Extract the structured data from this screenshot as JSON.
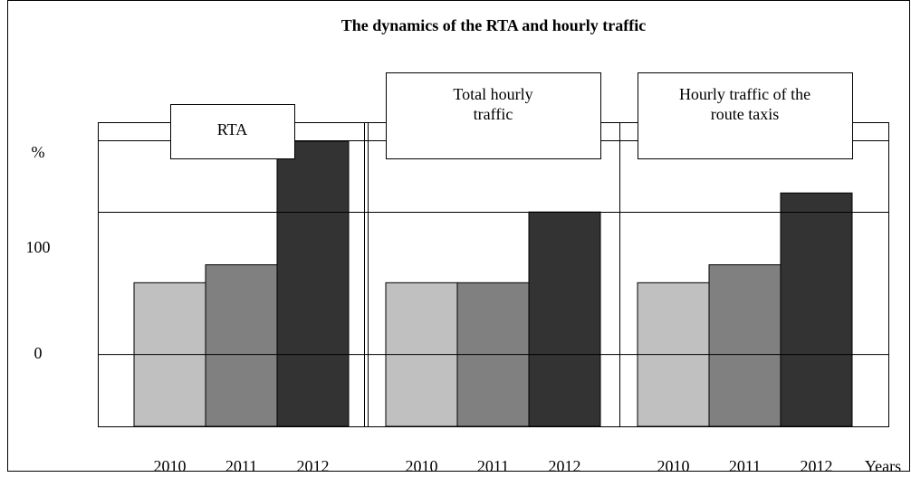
{
  "chart_data": {
    "type": "bar",
    "title": "The dynamics of the RTA and hourly traffic",
    "y_label": "%",
    "x_label": "Years",
    "ylim": [
      -68,
      220
    ],
    "yticks": [
      0,
      100
    ],
    "colors": [
      "#c0c0c0",
      "#808080",
      "#333333"
    ],
    "panels": [
      {
        "title": "RTA",
        "categories": [
          "2010",
          "2011",
          "2012"
        ],
        "values": [
          68,
          85,
          202
        ]
      },
      {
        "title": "Total hourly traffic",
        "categories": [
          "2010",
          "2011",
          "2012"
        ],
        "values": [
          68,
          68,
          135
        ]
      },
      {
        "title": "Hourly traffic of the route taxis",
        "categories": [
          "2010",
          "2011",
          "2012"
        ],
        "values": [
          68,
          85,
          153
        ]
      }
    ]
  }
}
